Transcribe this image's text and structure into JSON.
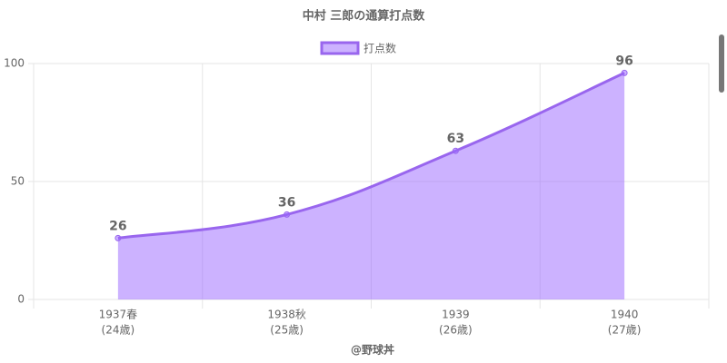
{
  "chart_data": {
    "type": "line",
    "title": "中村 三郎の通算打点数",
    "categories": [
      "1937春",
      "1938秋",
      "1939",
      "1940"
    ],
    "category_sublabels": [
      "(24歳)",
      "(25歳)",
      "(26歳)",
      "(27歳)"
    ],
    "x_label": "@野球丼",
    "series": [
      {
        "name": "打点数",
        "color": "#9966ee",
        "fill": "rgba(153,102,255,0.5)",
        "values": [
          26,
          36,
          63,
          96
        ]
      }
    ],
    "ylim": [
      0,
      100
    ],
    "yticks": [
      0,
      50,
      100
    ],
    "grid": true,
    "legend": "top",
    "data_labels": true
  }
}
